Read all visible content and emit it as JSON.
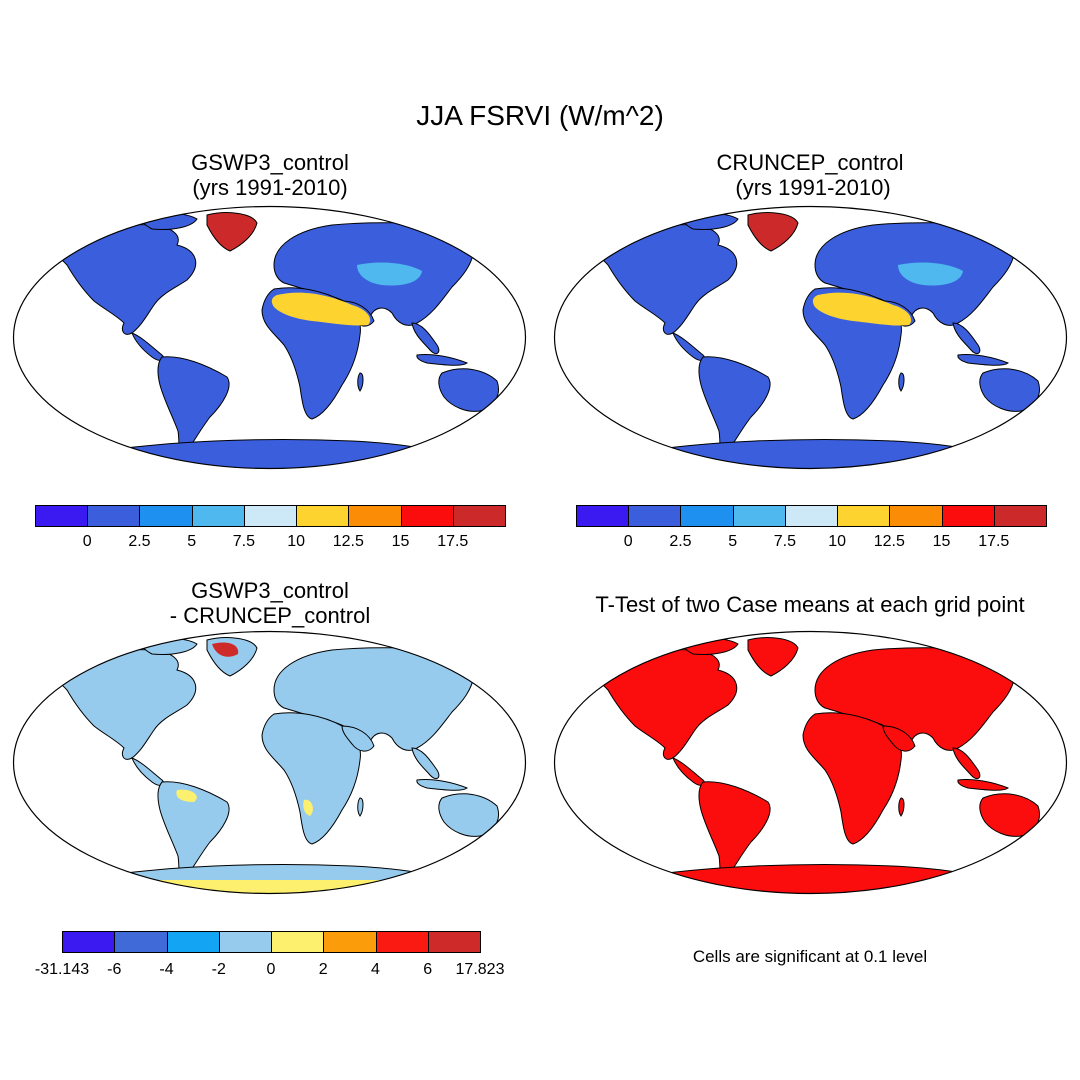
{
  "title": "JJA FSRVI (W/m^2)",
  "panels": [
    {
      "id": "gswp",
      "title_line1": "GSWP3_control",
      "title_line2": "(yrs 1991-2010)"
    },
    {
      "id": "cruncep",
      "title_line1": "CRUNCEP_control",
      "title_line2": " (yrs 1991-2010)"
    },
    {
      "id": "diff",
      "title_line1": "GSWP3_control",
      "title_line2": "- CRUNCEP_control"
    },
    {
      "id": "ttest",
      "title_line1": "T-Test of two Case means at each grid point"
    }
  ],
  "colorbars": {
    "abs": {
      "colors": [
        "#3b1af2",
        "#3b5fdc",
        "#1e90f0",
        "#4fb8ee",
        "#cde8f7",
        "#fdd330",
        "#fb8c06",
        "#fb0d0d",
        "#cc2a2a"
      ],
      "labels": [
        "0",
        "2.5",
        "5",
        "7.5",
        "10",
        "12.5",
        "15",
        "17.5"
      ]
    },
    "diff": {
      "colors": [
        "#3b1af2",
        "#3f6ad8",
        "#14a4f4",
        "#97cbee",
        "#fdf06e",
        "#fb9c0a",
        "#fb1a12",
        "#cf2a2a"
      ],
      "labels": [
        "-31.143",
        "-6",
        "-4",
        "-2",
        "0",
        "2",
        "4",
        "6",
        "17.823"
      ]
    }
  },
  "note": "Cells are significant at 0.1 level",
  "colors": {
    "ocean": "#ffffff",
    "land_abs_low": "#3b5fdc",
    "desert_abs": "#fdd330",
    "greenland_abs": "#cc2a2a",
    "land_diff": "#97cbee",
    "land_ttest": "#fb0d0d"
  }
}
